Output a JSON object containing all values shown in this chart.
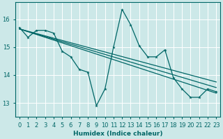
{
  "xlabel": "Humidex (Indice chaleur)",
  "background_color": "#cce8e8",
  "grid_color": "#ffffff",
  "line_color": "#006666",
  "xlim": [
    -0.5,
    23.5
  ],
  "ylim": [
    12.5,
    16.6
  ],
  "yticks": [
    13,
    14,
    15,
    16
  ],
  "xtick_labels": [
    "0",
    "1",
    "2",
    "3",
    "4",
    "5",
    "6",
    "7",
    "8",
    "9",
    "10",
    "11",
    "12",
    "13",
    "14",
    "15",
    "16",
    "17",
    "18",
    "19",
    "20",
    "21",
    "22",
    "23"
  ],
  "main_series_x": [
    0,
    1,
    2,
    3,
    4,
    5,
    6,
    7,
    8,
    9,
    10,
    11,
    12,
    13,
    14,
    15,
    16,
    17,
    18,
    19,
    20,
    21,
    22,
    23
  ],
  "main_series_y": [
    15.7,
    15.35,
    15.6,
    15.6,
    15.5,
    14.85,
    14.65,
    14.2,
    14.1,
    12.9,
    13.5,
    15.0,
    16.35,
    15.8,
    15.05,
    14.65,
    14.65,
    14.9,
    13.9,
    13.5,
    13.2,
    13.2,
    13.5,
    13.4
  ],
  "trend_lines": [
    {
      "x0": 0,
      "y0": 15.65,
      "x1": 23,
      "y1": 13.35
    },
    {
      "x0": 0,
      "y0": 15.65,
      "x1": 23,
      "y1": 13.55
    },
    {
      "x0": 0,
      "y0": 15.65,
      "x1": 23,
      "y1": 13.75
    }
  ]
}
